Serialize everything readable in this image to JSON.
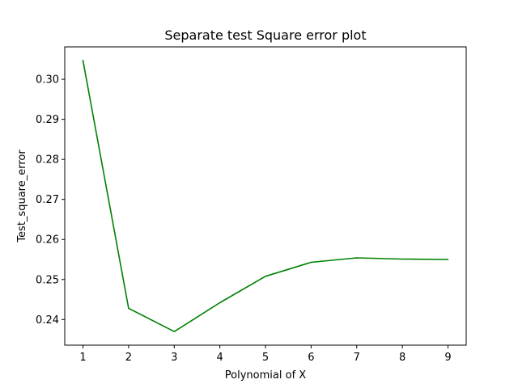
{
  "chart_data": {
    "type": "line",
    "title": "Separate test Square error plot",
    "xlabel": "Polynomial of X",
    "ylabel": "Test_square_error",
    "x": [
      1,
      2,
      3,
      4,
      5,
      6,
      7,
      8,
      9
    ],
    "series": [
      {
        "values": [
          0.3047,
          0.2428,
          0.237,
          0.2442,
          0.2508,
          0.2543,
          0.2554,
          0.2551,
          0.255
        ],
        "color": "#008000"
      }
    ],
    "xlim": [
      0.6,
      9.4
    ],
    "ylim": [
      0.2336,
      0.3081
    ],
    "xticks": [
      1,
      2,
      3,
      4,
      5,
      6,
      7,
      8,
      9
    ],
    "xtick_labels": [
      "1",
      "2",
      "3",
      "4",
      "5",
      "6",
      "7",
      "8",
      "9"
    ],
    "yticks": [
      0.24,
      0.25,
      0.26,
      0.27,
      0.28,
      0.29,
      0.3
    ],
    "ytick_labels": [
      "0.24",
      "0.25",
      "0.26",
      "0.27",
      "0.28",
      "0.29",
      "0.30"
    ],
    "grid": false,
    "legend": "none"
  }
}
